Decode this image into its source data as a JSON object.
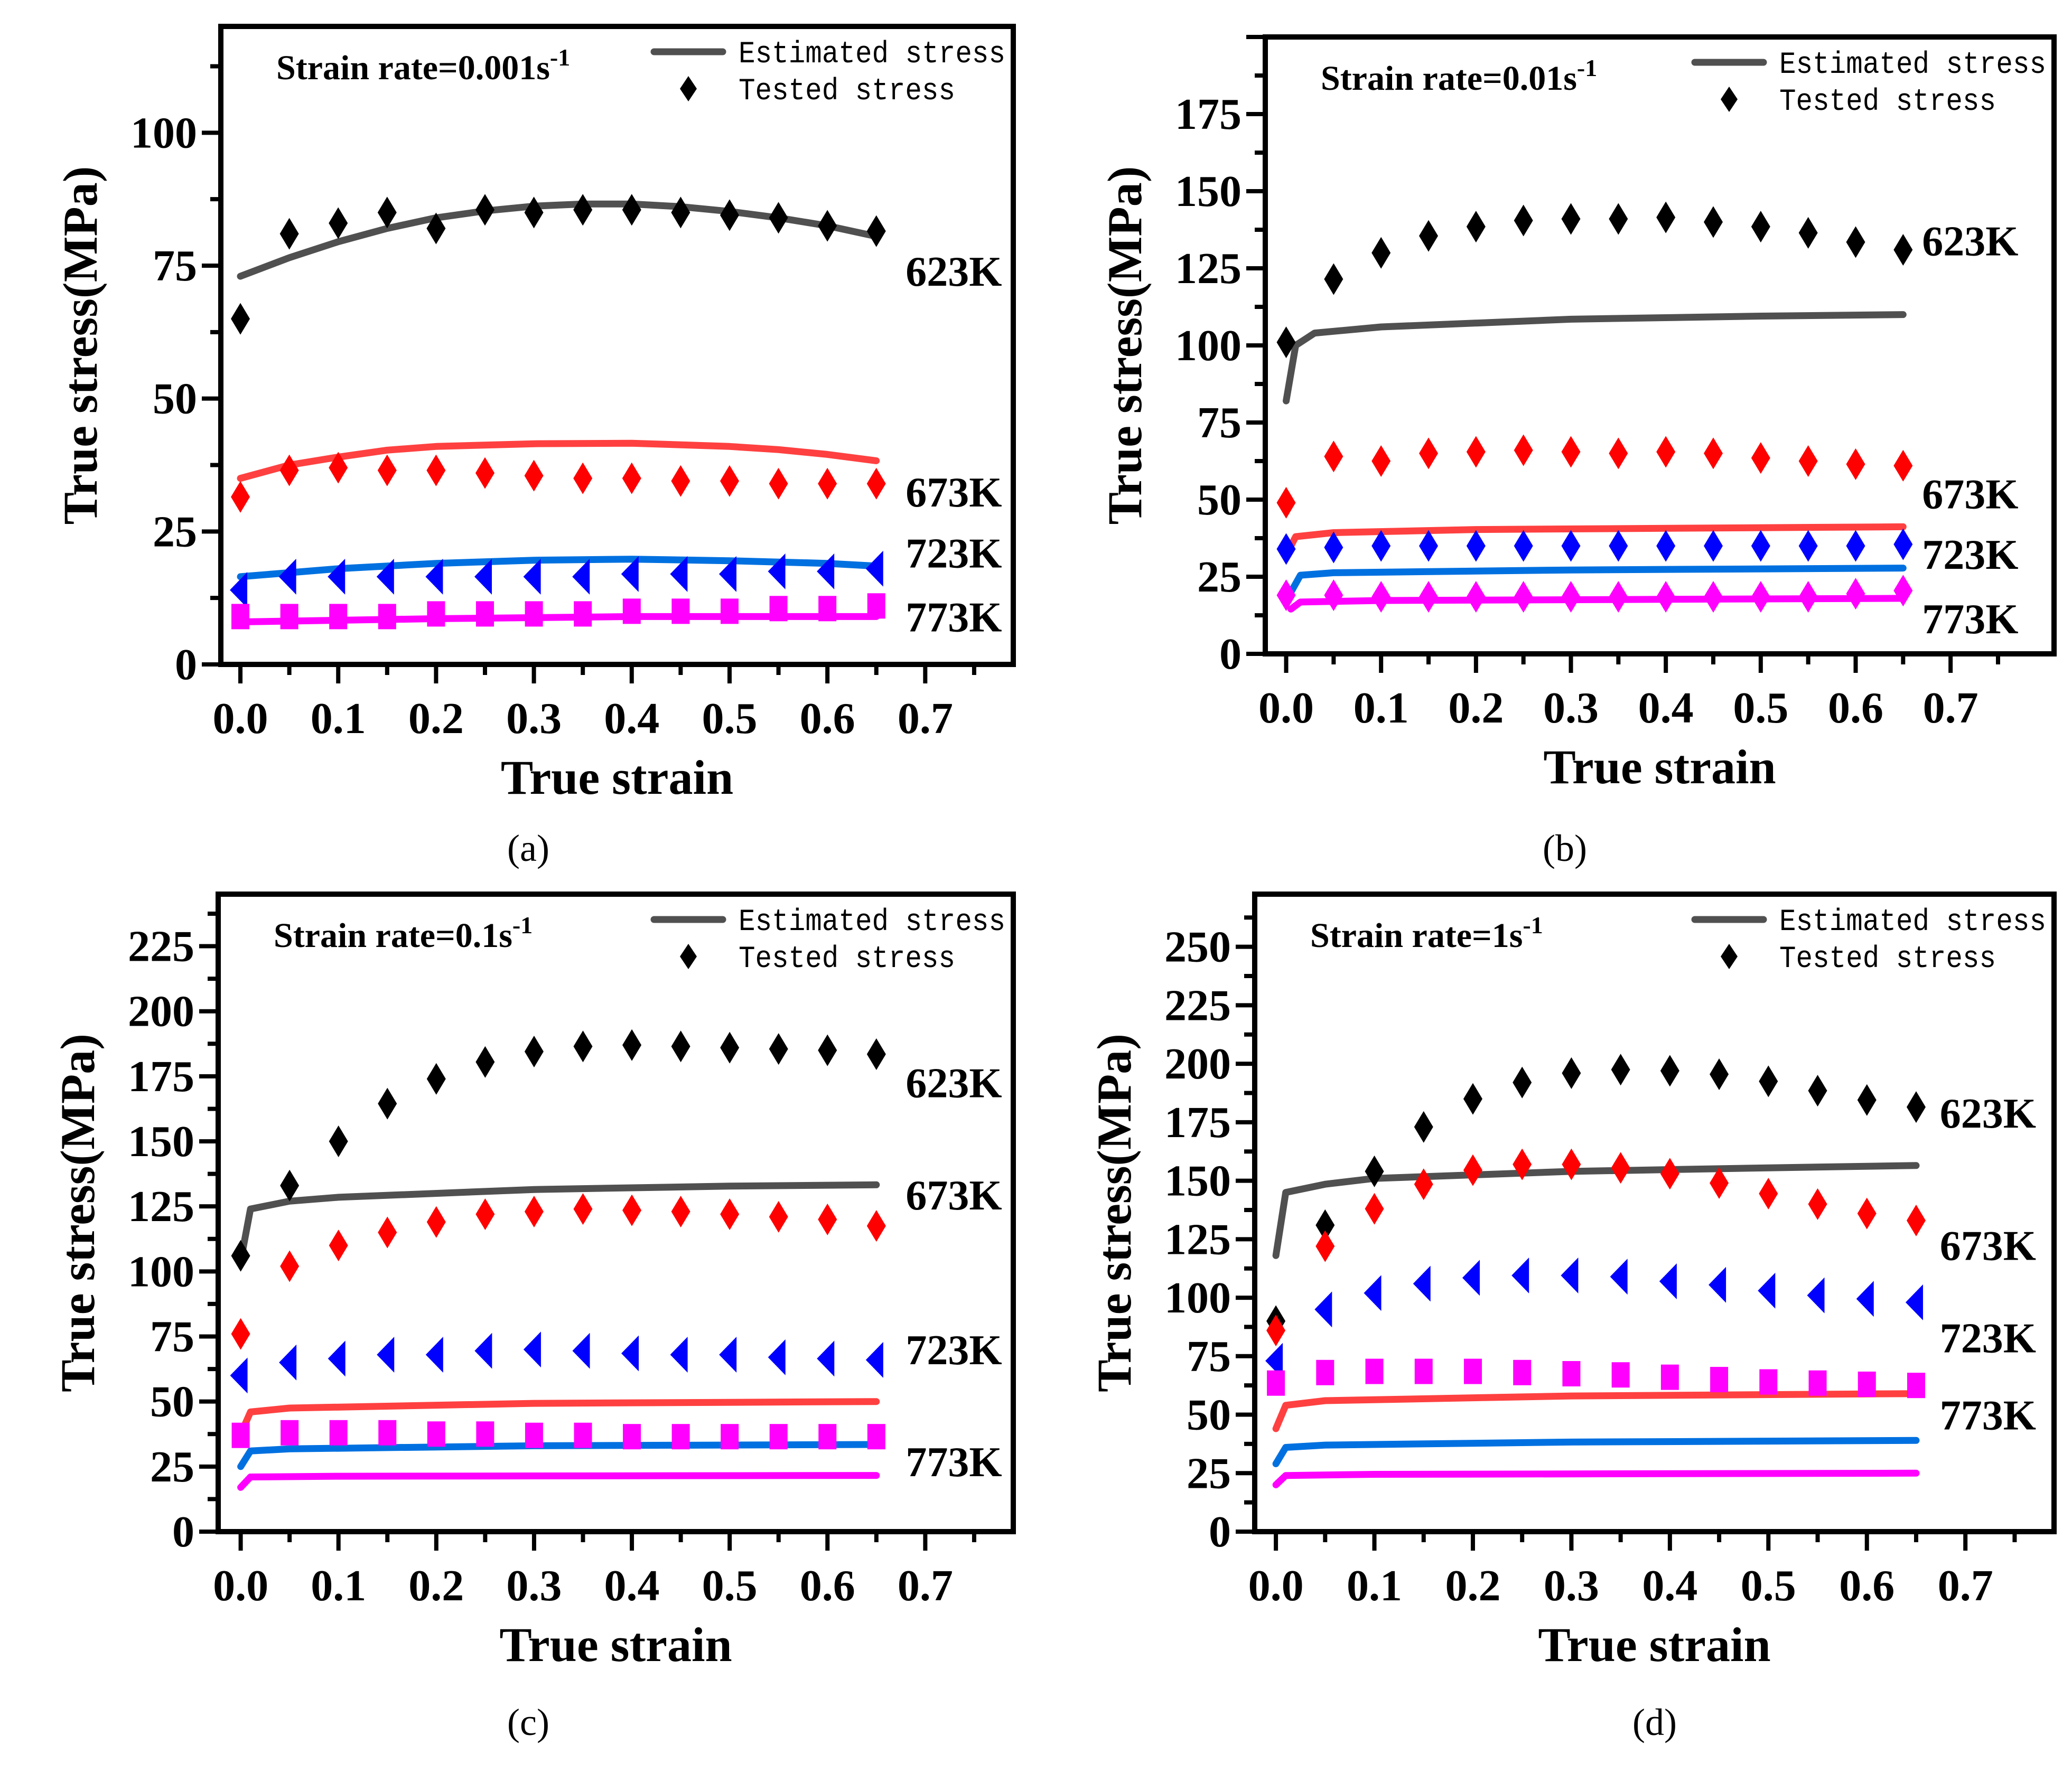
{
  "colors": {
    "est_black": "#505050",
    "black": "#000000",
    "red": "#ff0000",
    "red_line": "#ff4040",
    "blue": "#0000ff",
    "blue_line": "#0070e0",
    "magenta": "#ff00ff"
  },
  "chart_data": [
    {
      "panel_label": "(a)",
      "type": "scatter+line",
      "title": "Strain rate=0.001s",
      "title_sup": "-1",
      "xlabel": "True strain",
      "ylabel": "True stress(MPa)",
      "xlim": [
        -0.02,
        0.79
      ],
      "ylim": [
        0,
        120
      ],
      "xticks": [
        "0.0",
        "0.1",
        "0.2",
        "0.3",
        "0.4",
        "0.5",
        "0.6",
        "0.7"
      ],
      "yticks": [
        0,
        25,
        50,
        75,
        100
      ],
      "legend": {
        "position": "top-right",
        "line": "Estimated stress",
        "marker": "Tested stress"
      },
      "x": [
        0,
        0.05,
        0.1,
        0.15,
        0.2,
        0.25,
        0.3,
        0.35,
        0.4,
        0.45,
        0.5,
        0.55,
        0.6,
        0.65
      ],
      "series": [
        {
          "temp": "623K",
          "marker": "diamond",
          "color": "black",
          "tested": [
            65,
            81,
            83,
            85,
            82,
            85.5,
            85,
            85.5,
            85.5,
            85,
            84.5,
            84,
            82.5,
            81.5
          ],
          "estimated": [
            [
              0,
              73
            ],
            [
              0.05,
              76.5
            ],
            [
              0.1,
              79.5
            ],
            [
              0.15,
              82
            ],
            [
              0.2,
              84
            ],
            [
              0.25,
              85.3
            ],
            [
              0.3,
              86.2
            ],
            [
              0.35,
              86.6
            ],
            [
              0.4,
              86.6
            ],
            [
              0.45,
              86.1
            ],
            [
              0.5,
              85.2
            ],
            [
              0.55,
              84
            ],
            [
              0.6,
              82.5
            ],
            [
              0.65,
              80.5
            ]
          ]
        },
        {
          "temp": "673K",
          "marker": "diamond",
          "color": "red",
          "tested": [
            31.5,
            36.5,
            37,
            36.5,
            36.5,
            36,
            35.5,
            35,
            35,
            34.5,
            34.5,
            34,
            34,
            34
          ],
          "estimated": [
            [
              0,
              35
            ],
            [
              0.05,
              37.5
            ],
            [
              0.1,
              39
            ],
            [
              0.15,
              40.3
            ],
            [
              0.2,
              41
            ],
            [
              0.3,
              41.5
            ],
            [
              0.4,
              41.6
            ],
            [
              0.5,
              41
            ],
            [
              0.55,
              40.4
            ],
            [
              0.6,
              39.5
            ],
            [
              0.65,
              38.3
            ]
          ]
        },
        {
          "temp": "723K",
          "marker": "triangle-left",
          "color": "blue",
          "tested": [
            14,
            16.5,
            16.5,
            16.5,
            16.5,
            16.5,
            16.5,
            16.5,
            17,
            17,
            17,
            17.5,
            17.5,
            18
          ],
          "estimated": [
            [
              0,
              16.5
            ],
            [
              0.1,
              18
            ],
            [
              0.2,
              19
            ],
            [
              0.3,
              19.6
            ],
            [
              0.4,
              19.8
            ],
            [
              0.5,
              19.5
            ],
            [
              0.6,
              19
            ],
            [
              0.65,
              18.5
            ]
          ]
        },
        {
          "temp": "773K",
          "marker": "square",
          "color": "magenta",
          "tested": [
            9,
            9,
            9,
            9,
            9.5,
            9.5,
            9.5,
            9.5,
            10,
            10,
            10,
            10.5,
            10.5,
            11
          ],
          "estimated": [
            [
              0,
              8
            ],
            [
              0.2,
              8.6
            ],
            [
              0.4,
              9
            ],
            [
              0.65,
              9
            ]
          ]
        }
      ]
    },
    {
      "panel_label": "(b)",
      "type": "scatter+line",
      "title": "Strain rate=0.01s",
      "title_sup": "-1",
      "xlabel": "True strain",
      "ylabel": "True stress(MPa)",
      "xlim": [
        -0.022,
        0.809
      ],
      "ylim": [
        0,
        200
      ],
      "xticks": [
        "0.0",
        "0.1",
        "0.2",
        "0.3",
        "0.4",
        "0.5",
        "0.6",
        "0.7"
      ],
      "yticks": [
        0,
        25,
        50,
        75,
        100,
        125,
        150,
        175
      ],
      "legend": {
        "position": "top-right",
        "line": "Estimated stress",
        "marker": "Tested stress"
      },
      "x": [
        0,
        0.05,
        0.1,
        0.15,
        0.2,
        0.25,
        0.3,
        0.35,
        0.4,
        0.45,
        0.5,
        0.55,
        0.6,
        0.65
      ],
      "series": [
        {
          "temp": "623K",
          "marker": "diamond",
          "color": "black",
          "tested": [
            101,
            121.5,
            130,
            135.5,
            138.5,
            140.5,
            141,
            141,
            141.5,
            140,
            138.5,
            136.5,
            133.5,
            131
          ],
          "estimated": [
            [
              0,
              82
            ],
            [
              0.01,
              100
            ],
            [
              0.03,
              104
            ],
            [
              0.1,
              106
            ],
            [
              0.3,
              108.5
            ],
            [
              0.5,
              109.5
            ],
            [
              0.65,
              110
            ]
          ]
        },
        {
          "temp": "673K",
          "marker": "diamond",
          "color": "red",
          "tested": [
            49,
            64,
            62.5,
            65,
            65.5,
            66,
            65.5,
            65,
            65.5,
            65,
            63.5,
            62.5,
            61.5,
            61
          ],
          "estimated": [
            [
              0.005,
              35
            ],
            [
              0.01,
              38
            ],
            [
              0.05,
              39.3
            ],
            [
              0.2,
              40.3
            ],
            [
              0.65,
              41.2
            ]
          ]
        },
        {
          "temp": "723K",
          "marker": "diamond",
          "color": "blue",
          "tested": [
            34,
            34.5,
            35,
            35,
            35,
            35,
            35,
            35,
            35,
            35,
            35,
            35,
            35,
            35.5
          ],
          "estimated": [
            [
              0.005,
              20
            ],
            [
              0.015,
              25.5
            ],
            [
              0.05,
              26.3
            ],
            [
              0.3,
              27.2
            ],
            [
              0.65,
              27.8
            ]
          ]
        },
        {
          "temp": "773K",
          "marker": "diamond",
          "color": "magenta",
          "tested": [
            19,
            19,
            18.5,
            18.5,
            18.5,
            18.5,
            18.5,
            18.5,
            18.5,
            18.5,
            18.5,
            18.5,
            19.5,
            20.5
          ],
          "estimated": [
            [
              0.005,
              14.5
            ],
            [
              0.015,
              16.8
            ],
            [
              0.1,
              17.3
            ],
            [
              0.65,
              18
            ]
          ]
        }
      ]
    },
    {
      "panel_label": "(c)",
      "type": "scatter+line",
      "title": "Strain rate=0.1s",
      "title_sup": "-1",
      "xlabel": "True strain",
      "ylabel": "True stress(MPa)",
      "xlim": [
        -0.023,
        0.79
      ],
      "ylim": [
        0,
        245
      ],
      "xticks": [
        "0.0",
        "0.1",
        "0.2",
        "0.3",
        "0.4",
        "0.5",
        "0.6",
        "0.7"
      ],
      "yticks": [
        0,
        25,
        50,
        75,
        100,
        125,
        150,
        175,
        200,
        225
      ],
      "legend": {
        "position": "top-right",
        "line": "Estimated stress",
        "marker": "Tested stress"
      },
      "x": [
        0,
        0.05,
        0.1,
        0.15,
        0.2,
        0.25,
        0.3,
        0.35,
        0.4,
        0.45,
        0.5,
        0.55,
        0.6,
        0.65
      ],
      "series": [
        {
          "temp": "623K",
          "marker": "diamond",
          "color": "black",
          "tested": [
            106,
            133,
            150,
            164.5,
            174,
            180.5,
            184.5,
            186.5,
            187,
            186.5,
            186,
            185.5,
            185,
            183.5
          ],
          "estimated": [
            [
              0,
              104
            ],
            [
              0.01,
              124
            ],
            [
              0.05,
              127
            ],
            [
              0.1,
              128.5
            ],
            [
              0.3,
              131.5
            ],
            [
              0.5,
              132.8
            ],
            [
              0.65,
              133.3
            ]
          ]
        },
        {
          "temp": "673K",
          "marker": "diamond",
          "color": "red",
          "tested": [
            76,
            102,
            110,
            115,
            119,
            122,
            123,
            124,
            123.5,
            123,
            122,
            121,
            120,
            117.5
          ],
          "estimated": [
            [
              0.003,
              40
            ],
            [
              0.01,
              46
            ],
            [
              0.05,
              47.5
            ],
            [
              0.3,
              49.3
            ],
            [
              0.65,
              50
            ]
          ]
        },
        {
          "temp": "723K",
          "marker": "triangle-left",
          "color": "blue",
          "tested": [
            60,
            65,
            66.5,
            68,
            68,
            69.5,
            70,
            69.5,
            68.5,
            68,
            68,
            67,
            66.5,
            66
          ],
          "estimated": [
            [
              0,
              25
            ],
            [
              0.01,
              31
            ],
            [
              0.05,
              31.8
            ],
            [
              0.3,
              33
            ],
            [
              0.65,
              33.5
            ]
          ]
        },
        {
          "temp": "773K",
          "marker": "square",
          "color": "magenta",
          "tested": [
            37,
            38,
            38,
            38,
            37.5,
            37.5,
            37,
            37,
            36.5,
            36.5,
            36.5,
            36.5,
            36.5,
            36.5
          ],
          "estimated": [
            [
              0,
              17
            ],
            [
              0.01,
              21
            ],
            [
              0.1,
              21.3
            ],
            [
              0.65,
              21.6
            ]
          ]
        }
      ]
    },
    {
      "panel_label": "(d)",
      "type": "scatter+line",
      "title": "Strain rate=1s",
      "title_sup": "-1",
      "xlabel": "True strain",
      "ylabel": "True stress(MPa)",
      "xlim": [
        -0.0215,
        0.79
      ],
      "ylim": [
        0,
        272.5
      ],
      "xticks": [
        "0.0",
        "0.1",
        "0.2",
        "0.3",
        "0.4",
        "0.5",
        "0.6",
        "0.7"
      ],
      "yticks": [
        0,
        25,
        50,
        75,
        100,
        125,
        150,
        175,
        200,
        225,
        250
      ],
      "legend": {
        "position": "top-right",
        "line": "Estimated stress",
        "marker": "Tested stress"
      },
      "x": [
        0,
        0.05,
        0.1,
        0.15,
        0.2,
        0.25,
        0.3,
        0.35,
        0.4,
        0.45,
        0.5,
        0.55,
        0.6,
        0.65
      ],
      "series": [
        {
          "temp": "623K",
          "marker": "diamond",
          "color": "black",
          "tested": [
            90,
            131,
            154,
            173,
            185,
            192,
            196,
            197.5,
            197,
            195.5,
            192.5,
            188.5,
            184.5,
            181.5
          ],
          "estimated": [
            [
              0,
              118
            ],
            [
              0.01,
              145
            ],
            [
              0.05,
              148.5
            ],
            [
              0.1,
              151
            ],
            [
              0.3,
              154
            ],
            [
              0.5,
              155.5
            ],
            [
              0.65,
              156.5
            ]
          ]
        },
        {
          "temp": "673K",
          "marker": "diamond",
          "color": "red",
          "tested": [
            86,
            122,
            138,
            148.5,
            154.5,
            157,
            157,
            155.5,
            153,
            149,
            144.5,
            140,
            136,
            133
          ],
          "estimated": [
            [
              0,
              44
            ],
            [
              0.01,
              54
            ],
            [
              0.05,
              56
            ],
            [
              0.3,
              58
            ],
            [
              0.65,
              59
            ]
          ]
        },
        {
          "temp": "723K",
          "marker": "triangle-left",
          "color": "blue",
          "tested": [
            73,
            95,
            102,
            106,
            108.5,
            109.5,
            109.5,
            109,
            107,
            105.5,
            103,
            101,
            99.5,
            98
          ],
          "estimated": [
            [
              0,
              29
            ],
            [
              0.01,
              36
            ],
            [
              0.05,
              37
            ],
            [
              0.3,
              38.3
            ],
            [
              0.65,
              39
            ]
          ]
        },
        {
          "temp": "773K",
          "marker": "square",
          "color": "magenta",
          "tested": [
            63.5,
            68,
            68.5,
            68.5,
            68.5,
            68,
            67.5,
            67,
            66,
            65,
            64,
            63.5,
            63,
            62.5
          ],
          "estimated": [
            [
              0,
              20
            ],
            [
              0.01,
              24
            ],
            [
              0.1,
              24.5
            ],
            [
              0.65,
              25
            ]
          ]
        }
      ]
    }
  ]
}
